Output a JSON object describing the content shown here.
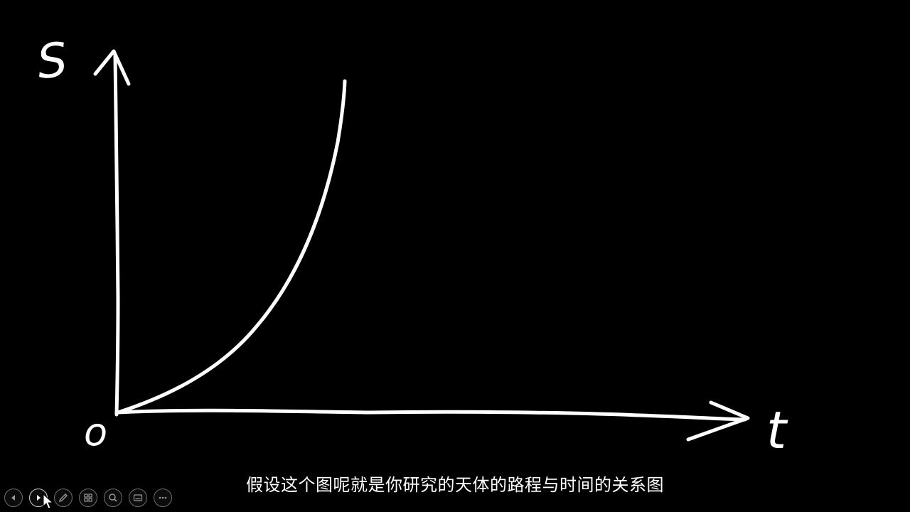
{
  "slide": {
    "background": "#000000",
    "ink_color": "#ffffff",
    "labels": {
      "y_axis": "S",
      "x_axis": "t",
      "origin": "o"
    }
  },
  "subtitle": {
    "text": "假设这个图呢就是你研究的天体的路程与时间的关系图"
  },
  "toolbar": {
    "buttons": [
      {
        "name": "previous-slide-button",
        "icon": "arrow-left-icon"
      },
      {
        "name": "next-slide-button",
        "icon": "arrow-right-icon"
      },
      {
        "name": "pen-tool-button",
        "icon": "pen-icon"
      },
      {
        "name": "see-all-slides-button",
        "icon": "grid-icon"
      },
      {
        "name": "zoom-button",
        "icon": "magnifier-icon"
      },
      {
        "name": "subtitles-button",
        "icon": "subtitles-icon"
      },
      {
        "name": "more-options-button",
        "icon": "ellipsis-icon"
      }
    ]
  }
}
